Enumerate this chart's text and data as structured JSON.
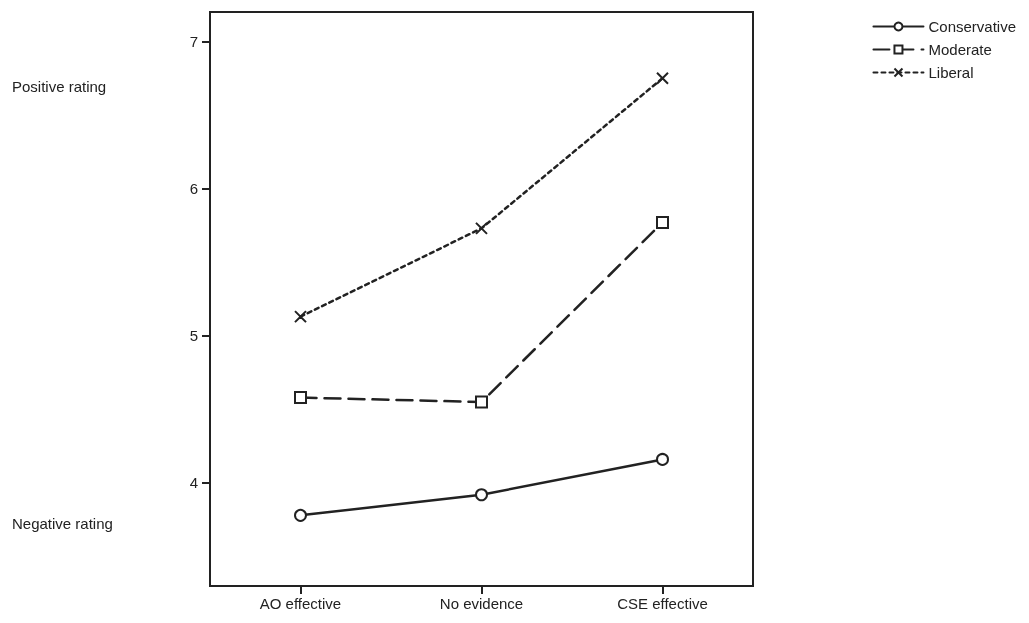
{
  "chart_data": {
    "type": "line",
    "categories": [
      "AO effective",
      "No evidence",
      "CSE effective"
    ],
    "series": [
      {
        "name": "Conservative",
        "color": "#222222",
        "values": [
          3.78,
          3.92,
          4.16
        ],
        "line_style": "solid",
        "marker": "circle"
      },
      {
        "name": "Moderate",
        "color": "#222222",
        "values": [
          4.58,
          4.55,
          5.77
        ],
        "line_style": "dashed",
        "marker": "square"
      },
      {
        "name": "Liberal",
        "color": "#222222",
        "values": [
          5.13,
          5.73,
          6.75
        ],
        "line_style": "dotted",
        "marker": "cross"
      }
    ],
    "ylim": [
      3.3,
      7.2
    ],
    "yticks": [
      4,
      5,
      6,
      7
    ],
    "grid": false,
    "legend": "top right",
    "annotations": [
      "Positive rating",
      "Negative rating"
    ]
  }
}
